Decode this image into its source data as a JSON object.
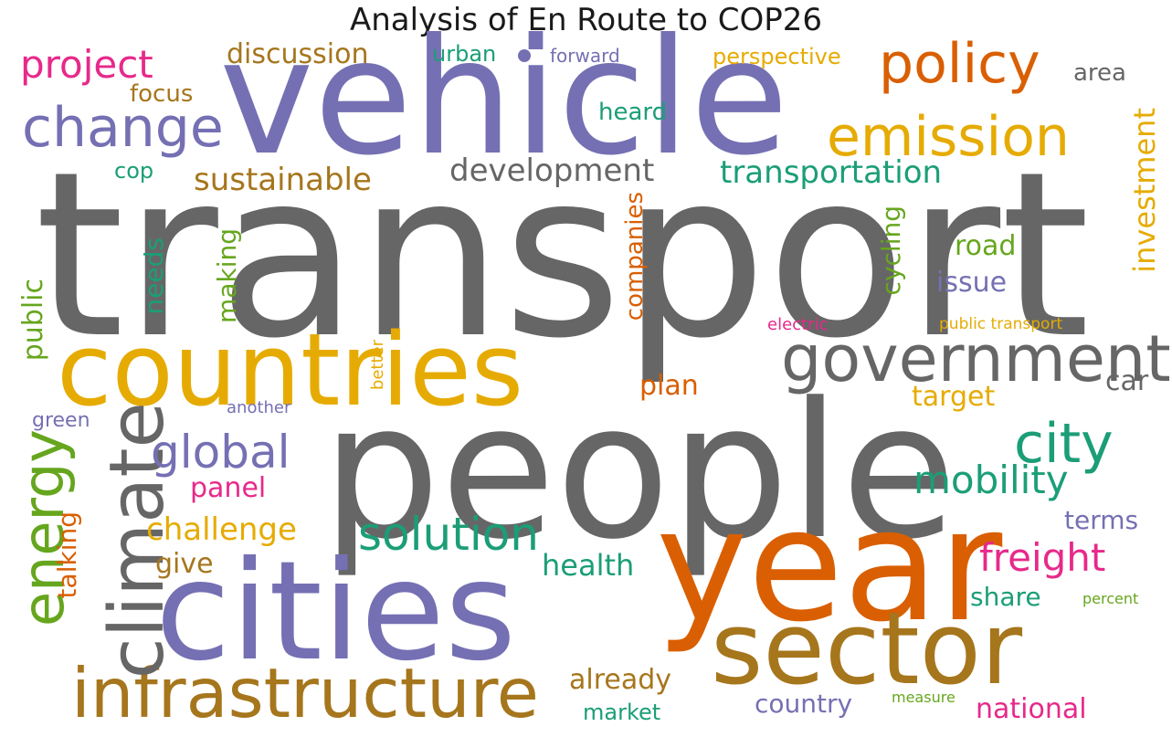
{
  "title": "Analysis of En Route to COP26",
  "colors": {
    "gray": "#666666",
    "purple": "#7570b3",
    "orange": "#d95f02",
    "yellow": "#e6ab02",
    "teal": "#1b9e77",
    "green": "#66a61e",
    "pink": "#e7298a",
    "brown": "#a6761d"
  },
  "dot_color": "purple",
  "words": [
    {
      "text": "transport",
      "color": "gray",
      "vertical": false
    },
    {
      "text": "people",
      "color": "gray",
      "vertical": false
    },
    {
      "text": "vehicle",
      "color": "purple",
      "vertical": false
    },
    {
      "text": "year",
      "color": "orange",
      "vertical": false
    },
    {
      "text": "cities",
      "color": "purple",
      "vertical": false
    },
    {
      "text": "countries",
      "color": "yellow",
      "vertical": false
    },
    {
      "text": "sector",
      "color": "brown",
      "vertical": false
    },
    {
      "text": "infrastructure",
      "color": "brown",
      "vertical": false
    },
    {
      "text": "government",
      "color": "gray",
      "vertical": false
    },
    {
      "text": "climate",
      "color": "gray",
      "vertical": true
    },
    {
      "text": "emission",
      "color": "yellow",
      "vertical": false
    },
    {
      "text": "policy",
      "color": "orange",
      "vertical": false
    },
    {
      "text": "change",
      "color": "purple",
      "vertical": false
    },
    {
      "text": "energy",
      "color": "green",
      "vertical": true
    },
    {
      "text": "city",
      "color": "teal",
      "vertical": false
    },
    {
      "text": "global",
      "color": "purple",
      "vertical": false
    },
    {
      "text": "solution",
      "color": "teal",
      "vertical": false
    },
    {
      "text": "project",
      "color": "pink",
      "vertical": false
    },
    {
      "text": "mobility",
      "color": "teal",
      "vertical": false
    },
    {
      "text": "freight",
      "color": "pink",
      "vertical": false
    },
    {
      "text": "development",
      "color": "gray",
      "vertical": false
    },
    {
      "text": "transportation",
      "color": "teal",
      "vertical": false
    },
    {
      "text": "sustainable",
      "color": "brown",
      "vertical": false
    },
    {
      "text": "challenge",
      "color": "yellow",
      "vertical": false
    },
    {
      "text": "investment",
      "color": "yellow",
      "vertical": true
    },
    {
      "text": "discussion",
      "color": "brown",
      "vertical": false
    },
    {
      "text": "health",
      "color": "teal",
      "vertical": false
    },
    {
      "text": "already",
      "color": "brown",
      "vertical": false
    },
    {
      "text": "national",
      "color": "pink",
      "vertical": false
    },
    {
      "text": "country",
      "color": "purple",
      "vertical": false
    },
    {
      "text": "public",
      "color": "green",
      "vertical": true
    },
    {
      "text": "needs",
      "color": "teal",
      "vertical": true
    },
    {
      "text": "talking",
      "color": "orange",
      "vertical": true
    },
    {
      "text": "issue",
      "color": "purple",
      "vertical": false
    },
    {
      "text": "road",
      "color": "green",
      "vertical": false
    },
    {
      "text": "target",
      "color": "yellow",
      "vertical": false
    },
    {
      "text": "plan",
      "color": "orange",
      "vertical": false
    },
    {
      "text": "share",
      "color": "teal",
      "vertical": false
    },
    {
      "text": "terms",
      "color": "purple",
      "vertical": false
    },
    {
      "text": "car",
      "color": "gray",
      "vertical": false
    },
    {
      "text": "panel",
      "color": "pink",
      "vertical": false
    },
    {
      "text": "give",
      "color": "brown",
      "vertical": false
    },
    {
      "text": "cycling",
      "color": "green",
      "vertical": true
    },
    {
      "text": "making",
      "color": "green",
      "vertical": true
    },
    {
      "text": "companies",
      "color": "orange",
      "vertical": true
    },
    {
      "text": "heard",
      "color": "teal",
      "vertical": false
    },
    {
      "text": "focus",
      "color": "brown",
      "vertical": false
    },
    {
      "text": "area",
      "color": "gray",
      "vertical": false
    },
    {
      "text": "market",
      "color": "teal",
      "vertical": false
    },
    {
      "text": "urban",
      "color": "teal",
      "vertical": false
    },
    {
      "text": "perspective",
      "color": "yellow",
      "vertical": false
    },
    {
      "text": "cop",
      "color": "teal",
      "vertical": false
    },
    {
      "text": "green",
      "color": "purple",
      "vertical": false
    },
    {
      "text": "forward",
      "color": "purple",
      "vertical": false
    },
    {
      "text": "another",
      "color": "purple",
      "vertical": false
    },
    {
      "text": "better",
      "color": "yellow",
      "vertical": true
    },
    {
      "text": "electric",
      "color": "pink",
      "vertical": false
    },
    {
      "text": "public transport",
      "color": "yellow",
      "vertical": false
    },
    {
      "text": "percent",
      "color": "green",
      "vertical": false
    },
    {
      "text": "measure",
      "color": "green",
      "vertical": false
    }
  ]
}
